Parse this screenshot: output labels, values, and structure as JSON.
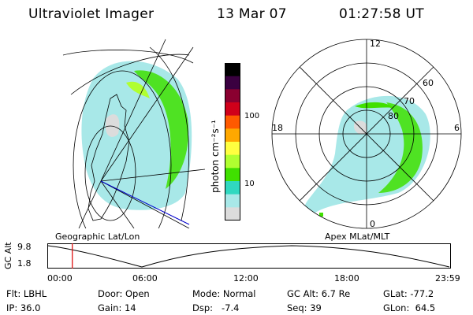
{
  "header": {
    "title": "Ultraviolet Imager",
    "date": "13 Mar 07",
    "time": "01:27:58 UT"
  },
  "left_panel": {
    "caption": "Geographic Lat/Lon"
  },
  "colorbar": {
    "label": "photon cm⁻²s⁻¹",
    "ticks": [
      "100",
      "10"
    ],
    "colors": [
      "#000000",
      "#3a0040",
      "#8a0030",
      "#d0001a",
      "#ff5a00",
      "#ffa800",
      "#ffff40",
      "#b0ff30",
      "#40e000",
      "#30d8c0",
      "#a8e8e8",
      "#dcdcdc"
    ]
  },
  "polar_panel": {
    "caption": "Apex MLat/MLT",
    "mlt_labels": {
      "top": "12",
      "left": "18",
      "right": "6",
      "bottom": "0"
    },
    "lat_labels": [
      "60",
      "70",
      "80"
    ]
  },
  "timeline": {
    "axis_label_top": "9.8",
    "axis_label_bottom": "1.8",
    "axis_title": "GC Alt",
    "ticks": [
      "00:00",
      "06:00",
      "12:00",
      "18:00",
      "23:59"
    ],
    "current_time_fraction": 0.062
  },
  "info": {
    "flt": "Flt: LBHL",
    "ip": "IP: 36.0",
    "door": "Door: Open",
    "gain": "Gain: 14",
    "mode": "Mode: Normal",
    "dsp": "Dsp:   -7.4",
    "gcalt": "GC Alt: 6.7 Re",
    "seq": "Seq: 39",
    "glat": "GLat: -77.2",
    "glon": "GLon:  64.5"
  }
}
